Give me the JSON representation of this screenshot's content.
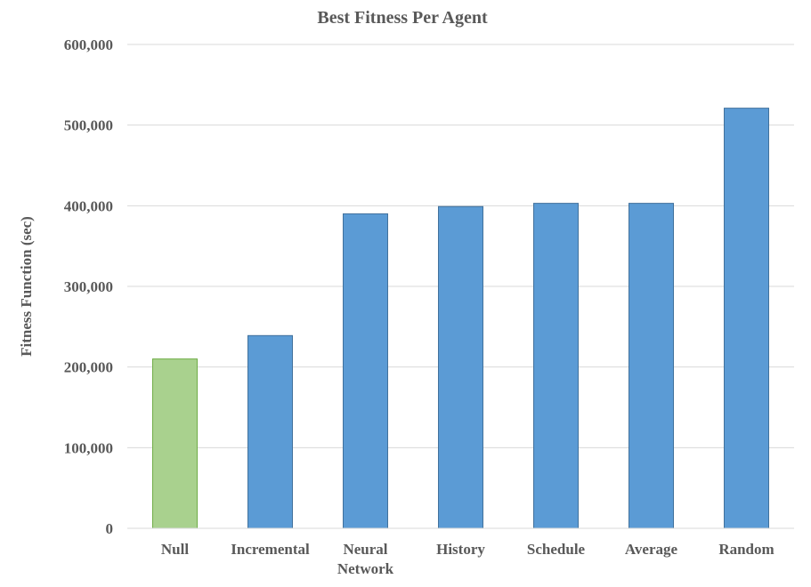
{
  "chart_data": {
    "type": "bar",
    "title": "Best Fitness Per Agent",
    "xlabel": "",
    "ylabel": "Fitness Function (sec)",
    "ylim": [
      0,
      600000
    ],
    "yticks": [
      0,
      100000,
      200000,
      300000,
      400000,
      500000,
      600000
    ],
    "ytick_labels": [
      "0",
      "100,000",
      "200,000",
      "300,000",
      "400,000",
      "500,000",
      "600,000"
    ],
    "categories": [
      "Null",
      "Incremental",
      "Neural Network",
      "History",
      "Schedule",
      "Average",
      "Random"
    ],
    "category_lines": [
      [
        "Null"
      ],
      [
        "Incremental"
      ],
      [
        "Neural",
        "Network"
      ],
      [
        "History"
      ],
      [
        "Schedule"
      ],
      [
        "Average"
      ],
      [
        "Random"
      ]
    ],
    "values": [
      210000,
      239000,
      390000,
      399000,
      403000,
      403000,
      521000
    ],
    "bar_colors": [
      "#a9d18e",
      "#5b9bd5",
      "#5b9bd5",
      "#5b9bd5",
      "#5b9bd5",
      "#5b9bd5",
      "#5b9bd5"
    ],
    "bar_edge_colors": [
      "#70ad47",
      "#41719c",
      "#41719c",
      "#41719c",
      "#41719c",
      "#41719c",
      "#41719c"
    ],
    "grid": true,
    "gridline_color": "#d9d9d9",
    "text_color": "#595959",
    "legend": "none"
  }
}
